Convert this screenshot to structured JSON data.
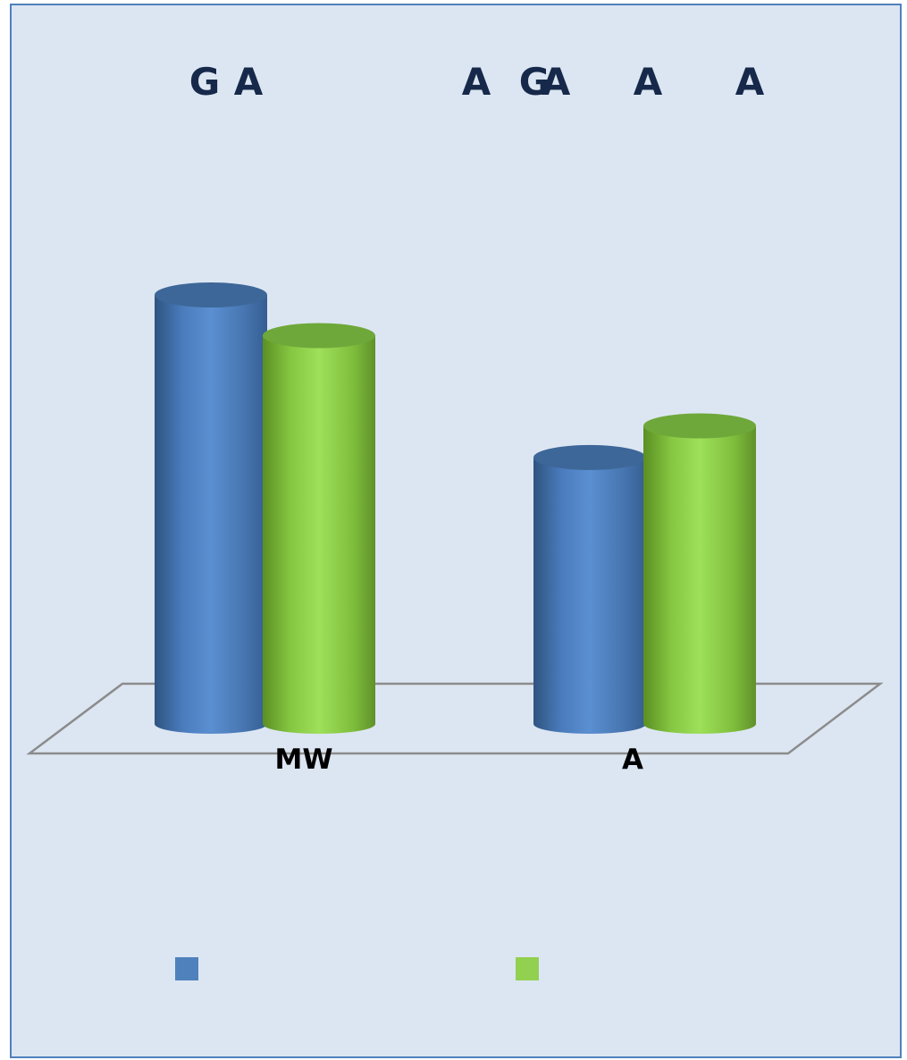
{
  "chart_data": {
    "type": "bar",
    "style": "3d-cylinder",
    "title_fragments": [
      "G",
      "A",
      "A",
      "G",
      "A",
      "A",
      "A"
    ],
    "categories": [
      "MW",
      "A"
    ],
    "series": [
      {
        "color": "#4f81bd",
        "values": [
          95,
          59
        ]
      },
      {
        "color": "#92d050",
        "values": [
          86,
          66
        ]
      }
    ],
    "ylim": [
      0,
      100
    ],
    "grid": false,
    "legend_position": "bottom",
    "floor_color": "#8c8c8c"
  }
}
